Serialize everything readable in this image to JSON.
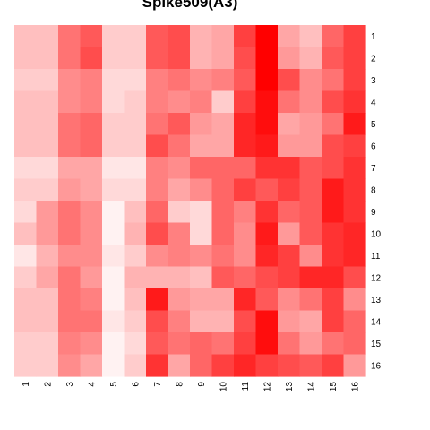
{
  "chart_data": {
    "type": "heatmap",
    "title": "Spike509(A3)",
    "xlabel": "",
    "ylabel": "",
    "x_labels": [
      "1",
      "2",
      "3",
      "4",
      "5",
      "6",
      "7",
      "8",
      "9",
      "10",
      "11",
      "12",
      "13",
      "14",
      "15",
      "16"
    ],
    "y_labels": [
      "1",
      "2",
      "3",
      "4",
      "5",
      "6",
      "7",
      "8",
      "9",
      "10",
      "11",
      "12",
      "13",
      "14",
      "15",
      "16"
    ],
    "color_low": "#ffffff",
    "color_high": "#ff0000",
    "value_range": [
      0,
      1
    ],
    "grid": false,
    "legend": "none",
    "values": [
      [
        0.25,
        0.25,
        0.55,
        0.65,
        0.2,
        0.2,
        0.65,
        0.7,
        0.3,
        0.35,
        0.75,
        1.0,
        0.35,
        0.25,
        0.6,
        0.75
      ],
      [
        0.25,
        0.25,
        0.55,
        0.7,
        0.2,
        0.2,
        0.65,
        0.7,
        0.3,
        0.35,
        0.7,
        1.0,
        0.4,
        0.3,
        0.65,
        0.75
      ],
      [
        0.2,
        0.2,
        0.45,
        0.5,
        0.15,
        0.15,
        0.5,
        0.55,
        0.45,
        0.5,
        0.65,
        1.0,
        0.7,
        0.45,
        0.55,
        0.75
      ],
      [
        0.25,
        0.25,
        0.45,
        0.5,
        0.15,
        0.2,
        0.5,
        0.45,
        0.5,
        0.2,
        0.75,
        0.95,
        0.55,
        0.45,
        0.7,
        0.8
      ],
      [
        0.25,
        0.25,
        0.55,
        0.6,
        0.2,
        0.2,
        0.55,
        0.65,
        0.4,
        0.35,
        0.85,
        0.95,
        0.35,
        0.4,
        0.55,
        0.9
      ],
      [
        0.25,
        0.25,
        0.55,
        0.6,
        0.2,
        0.2,
        0.7,
        0.55,
        0.35,
        0.35,
        0.85,
        0.9,
        0.4,
        0.4,
        0.7,
        0.75
      ],
      [
        0.15,
        0.15,
        0.35,
        0.35,
        0.1,
        0.1,
        0.5,
        0.45,
        0.6,
        0.6,
        0.6,
        0.8,
        0.8,
        0.65,
        0.7,
        0.8
      ],
      [
        0.2,
        0.2,
        0.4,
        0.35,
        0.15,
        0.15,
        0.5,
        0.35,
        0.45,
        0.6,
        0.75,
        0.65,
        0.75,
        0.65,
        0.9,
        0.8
      ],
      [
        0.15,
        0.4,
        0.55,
        0.45,
        0.05,
        0.25,
        0.6,
        0.2,
        0.15,
        0.6,
        0.5,
        0.8,
        0.6,
        0.65,
        0.9,
        0.8
      ],
      [
        0.25,
        0.4,
        0.55,
        0.45,
        0.05,
        0.3,
        0.7,
        0.5,
        0.15,
        0.6,
        0.45,
        0.9,
        0.4,
        0.65,
        0.8,
        0.85
      ],
      [
        0.1,
        0.3,
        0.45,
        0.45,
        0.1,
        0.2,
        0.45,
        0.5,
        0.45,
        0.55,
        0.45,
        0.85,
        0.75,
        0.45,
        0.8,
        0.85
      ],
      [
        0.2,
        0.35,
        0.55,
        0.4,
        0.05,
        0.3,
        0.3,
        0.3,
        0.25,
        0.65,
        0.6,
        0.7,
        0.75,
        0.85,
        0.85,
        0.7
      ],
      [
        0.25,
        0.25,
        0.55,
        0.5,
        0.05,
        0.25,
        0.9,
        0.4,
        0.35,
        0.35,
        0.85,
        0.65,
        0.45,
        0.55,
        0.75,
        0.45
      ],
      [
        0.25,
        0.25,
        0.55,
        0.55,
        0.1,
        0.2,
        0.7,
        0.5,
        0.3,
        0.3,
        0.7,
        0.95,
        0.4,
        0.35,
        0.75,
        0.6
      ],
      [
        0.2,
        0.2,
        0.5,
        0.45,
        0.05,
        0.15,
        0.65,
        0.55,
        0.6,
        0.55,
        0.75,
        0.95,
        0.55,
        0.4,
        0.55,
        0.6
      ],
      [
        0.2,
        0.2,
        0.45,
        0.35,
        0.05,
        0.2,
        0.8,
        0.35,
        0.6,
        0.75,
        0.85,
        0.75,
        0.7,
        0.65,
        0.75,
        0.4
      ]
    ]
  }
}
